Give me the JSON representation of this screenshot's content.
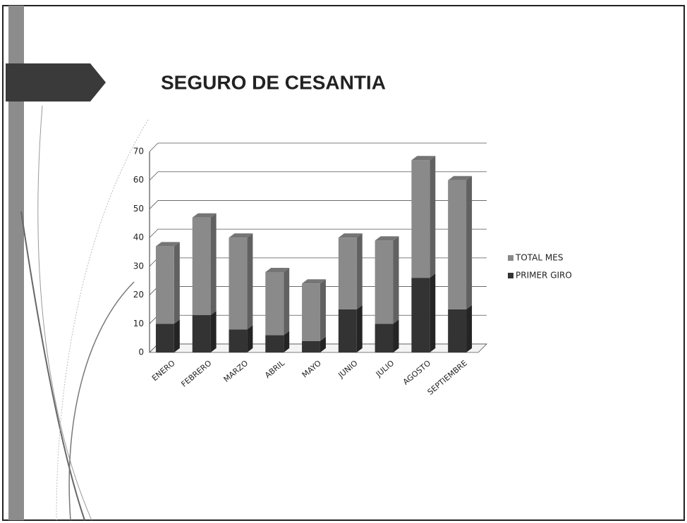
{
  "chart_data": {
    "type": "bar",
    "stacked": true,
    "title": "SEGURO DE CESANTIA",
    "categories": [
      "ENERO",
      "FEBRERO",
      "MARZO",
      "ABRIL",
      "MAYO",
      "JUNIO",
      "JULIO",
      "AGOSTO",
      "SEPTIEMBRE"
    ],
    "series": [
      {
        "name": "TOTAL MES",
        "color": "#8a8a8a",
        "values": [
          27,
          34,
          32,
          22,
          20,
          25,
          29,
          41,
          45
        ]
      },
      {
        "name": "PRIMER GIRO",
        "color": "#333333",
        "values": [
          10,
          13,
          8,
          6,
          4,
          15,
          10,
          26,
          15
        ]
      }
    ],
    "ylim": [
      0,
      70
    ],
    "yticks": [
      0,
      10,
      20,
      30,
      40,
      50,
      60,
      70
    ],
    "grid": true,
    "legend": "right"
  }
}
